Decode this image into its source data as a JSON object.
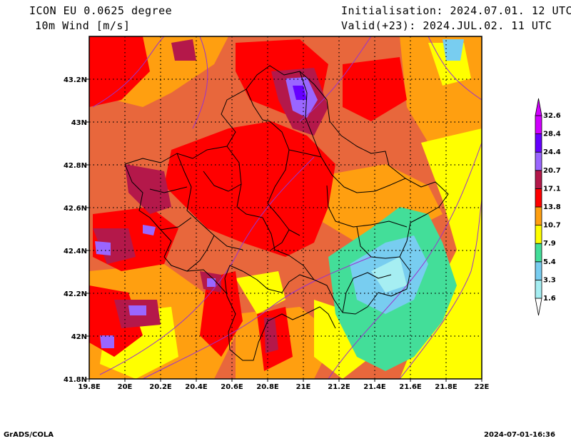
{
  "header": {
    "model": "ICON EU 0.0625 degree",
    "variable": "10m Wind [m/s]",
    "initialisation": "Initialisation: 2024.07.01. 12 UTC",
    "valid": "Valid(+23): 2024.JUL.02. 11 UTC"
  },
  "footer": {
    "credit": "GrADS/COLA",
    "timestamp": "2024-07-01-16:36"
  },
  "map": {
    "lon_range": [
      19.8,
      22.0
    ],
    "lat_range": [
      41.8,
      43.4
    ],
    "x_ticks": [
      "19.8E",
      "20E",
      "20.2E",
      "20.4E",
      "20.6E",
      "20.8E",
      "21E",
      "21.2E",
      "21.4E",
      "21.6E",
      "21.8E",
      "22E"
    ],
    "y_ticks": [
      "41.8N",
      "42N",
      "42.2N",
      "42.4N",
      "42.6N",
      "42.8N",
      "43N",
      "43.2N"
    ],
    "grid": true
  },
  "legend": {
    "levels": [
      "1.6",
      "3.3",
      "5.4",
      "7.9",
      "10.7",
      "13.8",
      "17.1",
      "20.7",
      "24.4",
      "28.4",
      "32.6"
    ],
    "colors": [
      "#ffffff",
      "#a6eef2",
      "#78cdf0",
      "#43de99",
      "#ffff00",
      "#ff9f10",
      "#ff0000",
      "#b4184a",
      "#9a66ff",
      "#6600ff",
      "#d000ff"
    ]
  }
}
